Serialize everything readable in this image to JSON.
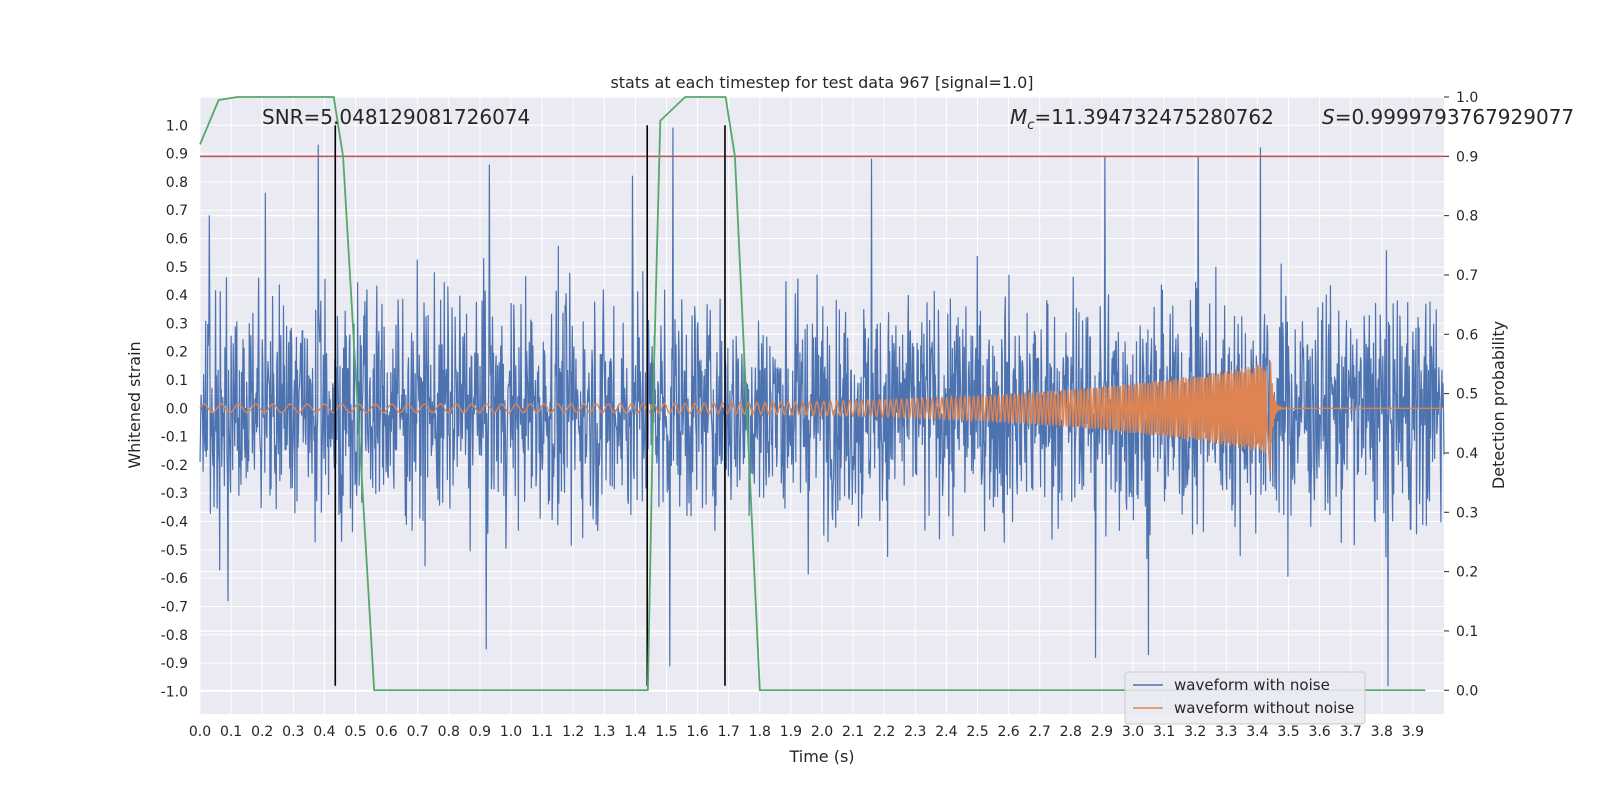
{
  "chart_data": {
    "type": "line",
    "title": "stats at each timestep for test data 967 [signal=1.0]",
    "xlabel": "Time (s)",
    "ylabel": "Whitened strain",
    "y2label": "Detection probability",
    "xlim": [
      0.0,
      4.0
    ],
    "ylim": [
      -1.08,
      1.1
    ],
    "y2lim": [
      -0.04,
      1.0
    ],
    "xticks": [
      0.0,
      0.1,
      0.2,
      0.3,
      0.4,
      0.5,
      0.6,
      0.7,
      0.8,
      0.9,
      1.0,
      1.1,
      1.2,
      1.3,
      1.4,
      1.5,
      1.6,
      1.7,
      1.8,
      1.9,
      2.0,
      2.1,
      2.2,
      2.3,
      2.4,
      2.5,
      2.6,
      2.7,
      2.8,
      2.9,
      3.0,
      3.1,
      3.2,
      3.3,
      3.4,
      3.5,
      3.6,
      3.7,
      3.8,
      3.9
    ],
    "yticks": [
      -1.0,
      -0.9,
      -0.8,
      -0.7,
      -0.6,
      -0.5,
      -0.4,
      -0.3,
      -0.2,
      -0.1,
      0.0,
      0.1,
      0.2,
      0.3,
      0.4,
      0.5,
      0.6,
      0.7,
      0.8,
      0.9,
      1.0
    ],
    "y2ticks": [
      0.0,
      0.1,
      0.2,
      0.3,
      0.4,
      0.5,
      0.6,
      0.7,
      0.8,
      0.9,
      1.0
    ],
    "annotations": {
      "snr": "SNR=5.048129081726074",
      "mc_symbol": "M",
      "mc_sub": "c",
      "mc_value": "=11.394732475280762",
      "s_symbol": "S",
      "s_value": "=0.9999793767929077"
    },
    "legend": {
      "placement": "lower-right",
      "entries": [
        "waveform with noise",
        "waveform without noise"
      ]
    },
    "series": [
      {
        "name": "waveform with noise",
        "axis": "left",
        "color": "#4c72b0",
        "kind": "noise",
        "t_start": 0.0,
        "t_end": 4.0,
        "spread": 0.28,
        "peaks": [
          {
            "t": 0.03,
            "v": 0.68
          },
          {
            "t": 0.21,
            "v": 0.76
          },
          {
            "t": 0.93,
            "v": 0.86
          },
          {
            "t": 1.39,
            "v": 0.82
          },
          {
            "t": 1.52,
            "v": 0.99
          },
          {
            "t": 2.16,
            "v": 0.88
          },
          {
            "t": 2.91,
            "v": 0.89
          },
          {
            "t": 3.21,
            "v": 0.89
          },
          {
            "t": 3.41,
            "v": 0.92
          },
          {
            "t": 0.38,
            "v": 0.93
          },
          {
            "t": 0.09,
            "v": -0.68
          },
          {
            "t": 0.92,
            "v": -0.85
          },
          {
            "t": 2.88,
            "v": -0.88
          },
          {
            "t": 3.82,
            "v": -0.98
          },
          {
            "t": 1.51,
            "v": -0.91
          },
          {
            "t": 3.05,
            "v": -0.87
          }
        ]
      },
      {
        "name": "waveform without noise",
        "axis": "left",
        "color": "#dd8452",
        "kind": "chirp",
        "t_start": 0.0,
        "t_merge": 3.44,
        "t_end": 4.0,
        "amp_start": 0.015,
        "amp_peak": 0.16,
        "amp_trough": -0.22,
        "freq_start": 18,
        "freq_end": 160
      },
      {
        "name": "detection probability",
        "axis": "right",
        "color": "#55a868",
        "x": [
          0.0,
          0.06,
          0.12,
          0.2,
          0.3,
          0.43,
          0.46,
          0.56,
          0.66,
          0.76,
          0.86,
          0.96,
          1.06,
          1.16,
          1.26,
          1.36,
          1.44,
          1.46,
          1.48,
          1.56,
          1.66,
          1.69,
          1.72,
          1.8,
          1.9,
          2.0,
          2.5,
          3.0,
          3.5,
          3.94
        ],
        "y": [
          0.92,
          0.995,
          1.0,
          1.0,
          1.0,
          1.0,
          0.9,
          0.0,
          0.0,
          0.0,
          0.0,
          0.0,
          0.0,
          0.0,
          0.0,
          0.0,
          0.0,
          0.55,
          0.96,
          1.0,
          1.0,
          1.0,
          0.9,
          0.0,
          0.0,
          0.0,
          0.0,
          0.0,
          0.0,
          0.0
        ]
      }
    ],
    "threshold": {
      "axis": "right",
      "value": 0.9,
      "color": "#c44e52"
    },
    "vlines": [
      {
        "t": 0.435,
        "ymin": -0.98,
        "ymax": 1.0
      },
      {
        "t": 1.438,
        "ymin": -0.98,
        "ymax": 1.0
      },
      {
        "t": 1.688,
        "ymin": -0.98,
        "ymax": 1.0
      }
    ]
  }
}
